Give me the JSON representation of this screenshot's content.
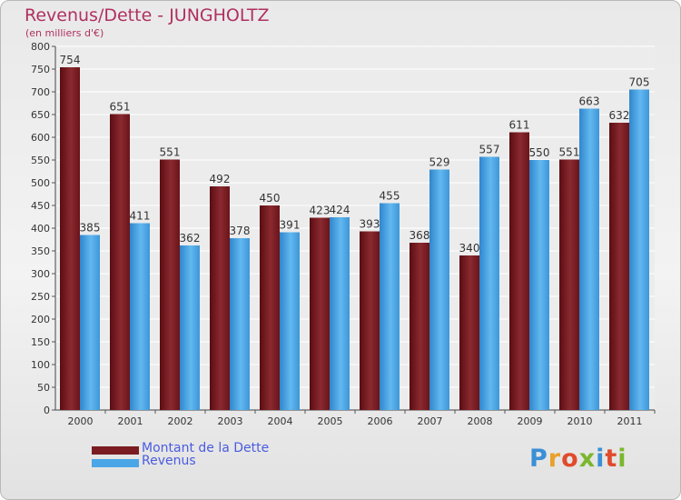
{
  "header": {
    "title": "Revenus/Dette - JUNGHOLTZ",
    "subtitle": "(en milliers d'€)"
  },
  "colors": {
    "dette": "#7a1c22",
    "revenus": "#4aa6e6",
    "title": "#b03060"
  },
  "legend": {
    "dette": "Montant de la Dette",
    "revenus": "Revenus"
  },
  "logo": {
    "text": "Proxiti"
  },
  "chart_data": {
    "type": "bar",
    "title": "Revenus/Dette - JUNGHOLTZ",
    "ylabel": "(en milliers d'€)",
    "xlabel": "",
    "categories": [
      "2000",
      "2001",
      "2002",
      "2003",
      "2004",
      "2005",
      "2006",
      "2007",
      "2008",
      "2009",
      "2010",
      "2011"
    ],
    "series": [
      {
        "name": "Montant de la Dette",
        "values": [
          754,
          651,
          551,
          492,
          450,
          423,
          393,
          368,
          340,
          611,
          551,
          632
        ]
      },
      {
        "name": "Revenus",
        "values": [
          385,
          411,
          362,
          378,
          391,
          424,
          455,
          529,
          557,
          550,
          663,
          705
        ]
      }
    ],
    "ylim": [
      0,
      800
    ],
    "yticks": [
      0,
      50,
      100,
      150,
      200,
      250,
      300,
      350,
      400,
      450,
      500,
      550,
      600,
      650,
      700,
      750,
      800
    ],
    "grid": true,
    "legend_position": "bottom-left"
  }
}
